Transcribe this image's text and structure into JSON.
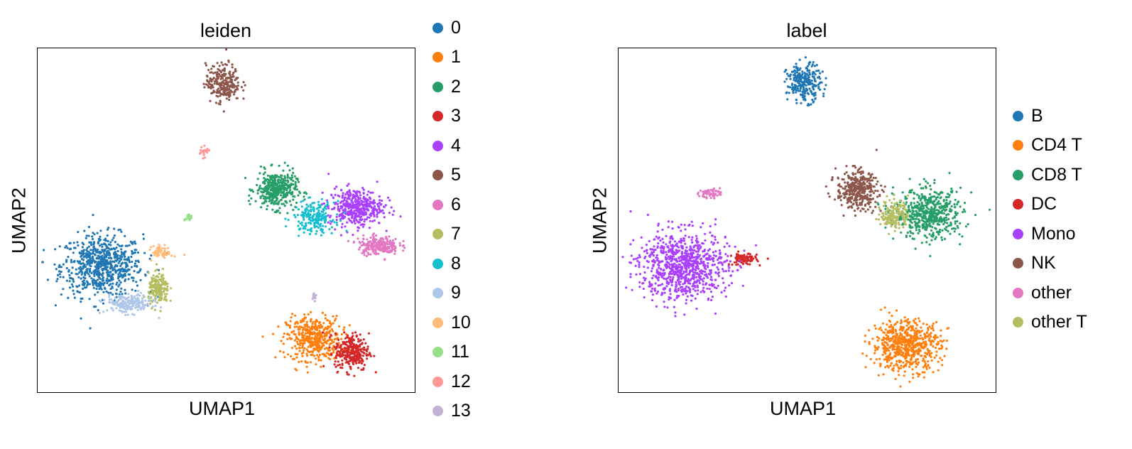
{
  "chart_data": [
    {
      "type": "scatter",
      "title": "leiden",
      "xlabel": "UMAP1",
      "ylabel": "UMAP2",
      "grid": false,
      "ticks": false,
      "xlim": [
        0,
        100
      ],
      "ylim": [
        0,
        100
      ],
      "legend_position": "right",
      "categories": [
        {
          "name": "0",
          "color": "#1f77b4",
          "cx": 17,
          "cy": 37,
          "rx": 12,
          "ry": 10,
          "n": 700
        },
        {
          "name": "1",
          "color": "#ff7f0e",
          "cx": 73,
          "cy": 16,
          "rx": 8,
          "ry": 7,
          "n": 450
        },
        {
          "name": "2",
          "color": "#279e68",
          "cx": 63,
          "cy": 59,
          "rx": 6,
          "ry": 6,
          "n": 380
        },
        {
          "name": "3",
          "color": "#d62728",
          "cx": 83,
          "cy": 12,
          "rx": 5,
          "ry": 6,
          "n": 280
        },
        {
          "name": "4",
          "color": "#aa40fc",
          "cx": 84,
          "cy": 54,
          "rx": 8,
          "ry": 6,
          "n": 420
        },
        {
          "name": "5",
          "color": "#8c564b",
          "cx": 49,
          "cy": 90,
          "rx": 5,
          "ry": 6,
          "n": 250
        },
        {
          "name": "6",
          "color": "#e377c2",
          "cx": 90,
          "cy": 43,
          "rx": 6,
          "ry": 3,
          "n": 220
        },
        {
          "name": "7",
          "color": "#b5bd61",
          "cx": 32,
          "cy": 30,
          "rx": 3,
          "ry": 5,
          "n": 180
        },
        {
          "name": "8",
          "color": "#17becf",
          "cx": 73,
          "cy": 51,
          "rx": 6,
          "ry": 5,
          "n": 200
        },
        {
          "name": "9",
          "color": "#aec7e8",
          "cx": 24,
          "cy": 26,
          "rx": 7,
          "ry": 3,
          "n": 200
        },
        {
          "name": "10",
          "color": "#ffbb78",
          "cx": 33,
          "cy": 41,
          "rx": 3,
          "ry": 2,
          "n": 60
        },
        {
          "name": "11",
          "color": "#98df8a",
          "cx": 40,
          "cy": 51,
          "rx": 1,
          "ry": 1.5,
          "n": 30
        },
        {
          "name": "12",
          "color": "#ff9896",
          "cx": 44,
          "cy": 70,
          "rx": 1.5,
          "ry": 1.5,
          "n": 25
        },
        {
          "name": "13",
          "color": "#c5b0d5",
          "cx": 73,
          "cy": 28,
          "rx": 0.6,
          "ry": 1.5,
          "n": 15
        }
      ]
    },
    {
      "type": "scatter",
      "title": "label",
      "xlabel": "UMAP1",
      "ylabel": "UMAP2",
      "grid": false,
      "ticks": false,
      "xlim": [
        0,
        100
      ],
      "ylim": [
        0,
        100
      ],
      "legend_position": "right",
      "categories": [
        {
          "name": "B",
          "color": "#1f77b4",
          "cx": 49,
          "cy": 90,
          "rx": 5,
          "ry": 6,
          "n": 260
        },
        {
          "name": "CD4 T",
          "color": "#ff7f0e",
          "cx": 76,
          "cy": 14,
          "rx": 10,
          "ry": 8,
          "n": 650
        },
        {
          "name": "CD8 T",
          "color": "#279e68",
          "cx": 82,
          "cy": 52,
          "rx": 10,
          "ry": 8,
          "n": 550
        },
        {
          "name": "DC",
          "color": "#d62728",
          "cx": 33,
          "cy": 39,
          "rx": 4,
          "ry": 2,
          "n": 90
        },
        {
          "name": "Mono",
          "color": "#aa40fc",
          "cx": 17,
          "cy": 37,
          "rx": 13,
          "ry": 11,
          "n": 850
        },
        {
          "name": "NK",
          "color": "#8c564b",
          "cx": 63,
          "cy": 59,
          "rx": 6,
          "ry": 6,
          "n": 380
        },
        {
          "name": "other",
          "color": "#e377c2",
          "cx": 24,
          "cy": 58,
          "rx": 3,
          "ry": 1.5,
          "n": 60
        },
        {
          "name": "other T",
          "color": "#b5bd61",
          "cx": 73,
          "cy": 52,
          "rx": 4,
          "ry": 5,
          "n": 160
        }
      ]
    }
  ]
}
